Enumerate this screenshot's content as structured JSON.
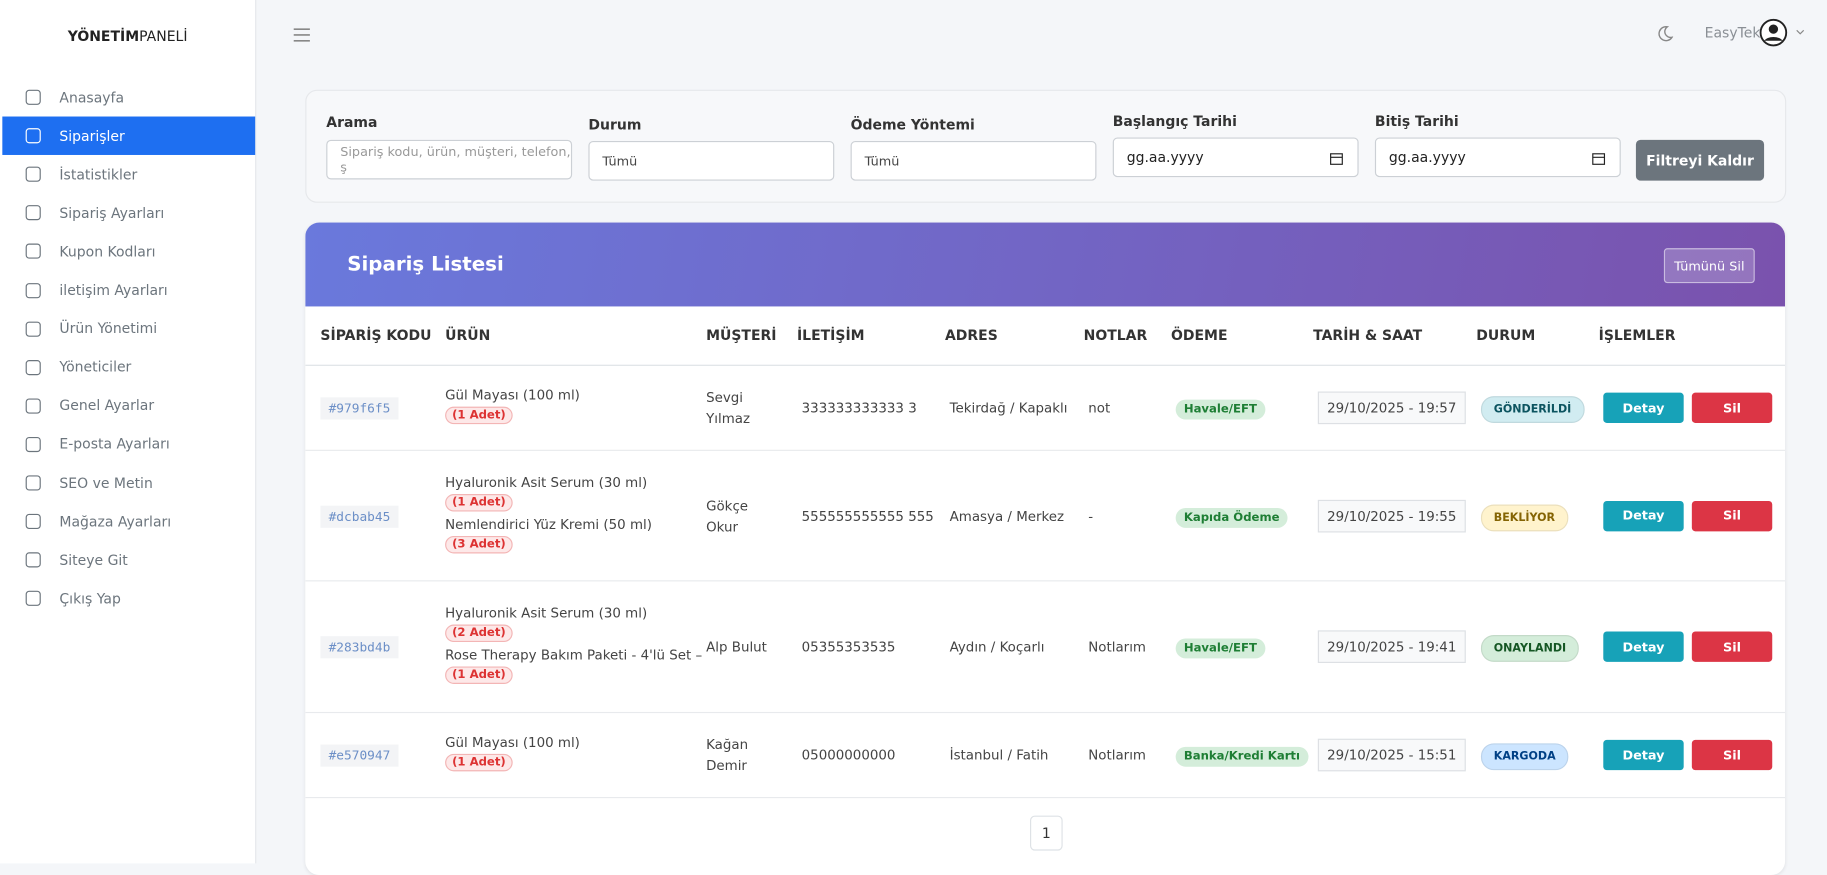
{
  "brand": {
    "bold": "YÖNETİM",
    "light": "PANELİ"
  },
  "menu": [
    "Anasayfa",
    "Siparişler",
    "İstatistikler",
    "Sipariş Ayarları",
    "Kupon Kodları",
    "iletişim Ayarları",
    "Ürün Yönetimi",
    "Yöneticiler",
    "Genel Ayarlar",
    "E-posta Ayarları",
    "SEO ve Metin",
    "Mağaza Ayarları",
    "Siteye Git",
    "Çıkış Yap"
  ],
  "active_menu": 1,
  "user": "EasyTek",
  "filters": {
    "search_label": "Arama",
    "search_placeholder": "Sipariş kodu, ürün, müşteri, telefon, ş",
    "status_label": "Durum",
    "status_value": "Tümü",
    "payment_label": "Ödeme Yöntemi",
    "payment_value": "Tümü",
    "start_label": "Başlangıç Tarihi",
    "start_value": "gg.aa.yyyy",
    "end_label": "Bitiş Tarihi",
    "end_value": "gg.aa.yyyy",
    "clear": "Filtreyi Kaldır"
  },
  "table": {
    "title": "Sipariş Listesi",
    "delete_all": "Tümünü Sil",
    "headers": [
      "SİPARİŞ KODU",
      "ÜRÜN",
      "MÜŞTERİ",
      "İLETİŞİM",
      "ADRES",
      "NOTLAR",
      "ÖDEME",
      "TARİH & SAAT",
      "DURUM",
      "İŞLEMLER"
    ],
    "actions": [
      "Detay",
      "Sil"
    ],
    "rows": [
      {
        "code": "#979f6f5",
        "products": [
          {
            "name": "Gül Mayası (100 ml)",
            "qty": "(1 Adet)"
          }
        ],
        "customer": "Sevgi Yılmaz",
        "phone": "333333333333 3",
        "address": "Tekirdağ / Kapaklı",
        "notes": "not",
        "payment": "Havale/EFT",
        "date": "29/10/2025 - 19:57",
        "status": {
          "label": "GÖNDERİLDİ",
          "color": "#0c5460",
          "bg": "#d1ecf1"
        }
      },
      {
        "code": "#dcbab45",
        "products": [
          {
            "name": "Hyaluronik Asit Serum (30 ml)",
            "qty": "(1 Adet)"
          },
          {
            "name": "Nemlendirici Yüz Kremi (50 ml)",
            "qty": "(3 Adet)"
          }
        ],
        "customer": "Gökçe Okur",
        "phone": "555555555555 555",
        "address": "Amasya / Merkez",
        "notes": "-",
        "payment": "Kapıda Ödeme",
        "date": "29/10/2025 - 19:55",
        "status": {
          "label": "BEKLİYOR",
          "color": "#856404",
          "bg": "#fff3cd"
        }
      },
      {
        "code": "#283bd4b",
        "products": [
          {
            "name": "Hyaluronik Asit Serum (30 ml)",
            "qty": "(2 Adet)"
          },
          {
            "name": "Rose Therapy Bakım Paketi - 4'lü Set –",
            "qty": "(1 Adet)"
          }
        ],
        "customer": "Alp Bulut",
        "phone": "05355353535",
        "address": "Aydın / Koçarlı",
        "notes": "Notlarım",
        "payment": "Havale/EFT",
        "date": "29/10/2025 - 19:41",
        "status": {
          "label": "ONAYLANDI",
          "color": "#155724",
          "bg": "#d4edda"
        }
      },
      {
        "code": "#e570947",
        "products": [
          {
            "name": "Gül Mayası (100 ml)",
            "qty": "(1 Adet)"
          }
        ],
        "customer": "Kağan Demir",
        "phone": "05000000000",
        "address": "İstanbul / Fatih",
        "notes": "Notlarım",
        "payment": "Banka/Kredi Kartı",
        "date": "29/10/2025 - 15:51",
        "status": {
          "label": "KARGODA",
          "color": "#004085",
          "bg": "#cce5ff"
        }
      }
    ]
  },
  "pagination": [
    "1"
  ]
}
